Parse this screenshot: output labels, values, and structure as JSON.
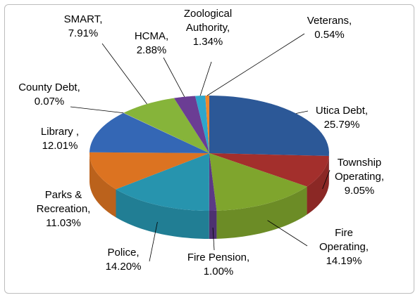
{
  "chart_data": {
    "type": "pie3d",
    "categories": [
      "Utica Debt,",
      "Township Operating,",
      "Fire Operating,",
      "Fire Pension,",
      "Police,",
      "Parks & Recreation,",
      "Library ,",
      "County Debt,",
      "SMART,",
      "HCMA,",
      "Zoological Authority,",
      "Veterans,"
    ],
    "values": [
      25.79,
      9.05,
      14.19,
      1.0,
      14.2,
      11.03,
      12.01,
      0.07,
      7.91,
      2.88,
      1.34,
      0.54
    ],
    "value_labels": [
      "25.79%",
      "9.05%",
      "14.19%",
      "1.00%",
      "14.20%",
      "11.03%",
      "12.01%",
      "0.07%",
      "7.91%",
      "2.88%",
      "1.34%",
      "0.54%"
    ],
    "colors": [
      "#2c5897",
      "#a32f2c",
      "#7fa52d",
      "#5b3a85",
      "#2794ae",
      "#dc7321",
      "#3467b5",
      "#a8a8a8",
      "#86b43a",
      "#6b3d94",
      "#2ea6cc",
      "#f0882a"
    ]
  }
}
